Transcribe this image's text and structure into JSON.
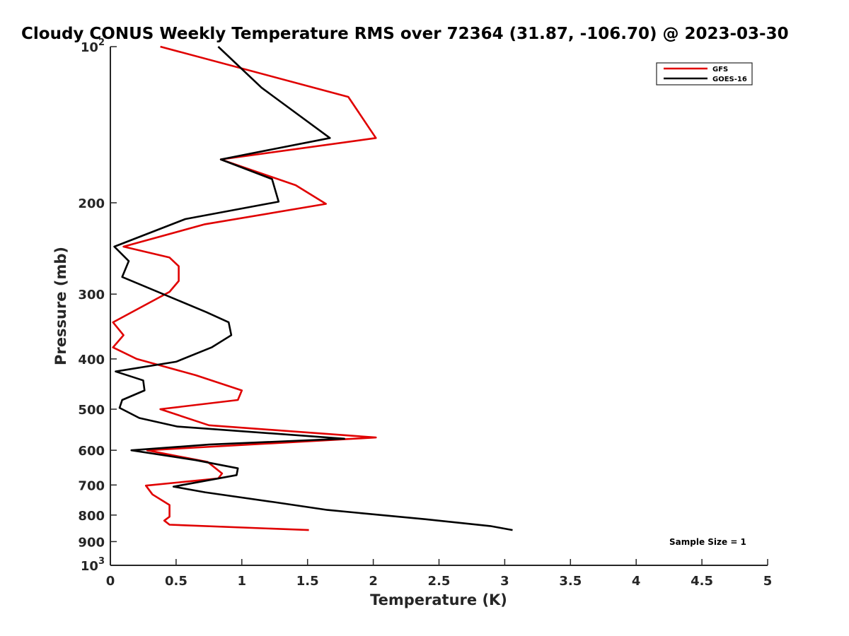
{
  "chart_data": {
    "type": "line",
    "title": "Cloudy CONUS Weekly Temperature RMS over 72364 (31.87, -106.70) @ 2023-03-30",
    "xlabel": "Temperature (K)",
    "ylabel": "Pressure (mb)",
    "xlim": [
      0,
      5
    ],
    "ylim": [
      100,
      1000
    ],
    "y_scale": "log",
    "y_reversed": true,
    "grid": false,
    "legend_position": "top-right",
    "xticks": [
      0,
      0.5,
      1,
      1.5,
      2,
      2.5,
      3,
      3.5,
      4,
      4.5,
      5
    ],
    "xtick_labels": [
      "0",
      "0.5",
      "1",
      "1.5",
      "2",
      "2.5",
      "3",
      "3.5",
      "4",
      "4.5",
      "5"
    ],
    "yticks": [
      100,
      200,
      300,
      400,
      500,
      600,
      700,
      800,
      900,
      1000
    ],
    "ytick_labels": [
      {
        "base": "10",
        "exp": "2"
      },
      {
        "base": "200",
        "exp": ""
      },
      {
        "base": "300",
        "exp": ""
      },
      {
        "base": "400",
        "exp": ""
      },
      {
        "base": "500",
        "exp": ""
      },
      {
        "base": "600",
        "exp": ""
      },
      {
        "base": "700",
        "exp": ""
      },
      {
        "base": "800",
        "exp": ""
      },
      {
        "base": "900",
        "exp": ""
      },
      {
        "base": "10",
        "exp": "3"
      }
    ],
    "series": [
      {
        "name": "GFS",
        "color": "#e00000",
        "x": [
          0.38,
          1.81,
          2.02,
          0.84,
          1.41,
          1.64,
          0.72,
          0.1,
          0.45,
          0.52,
          0.52,
          0.45,
          0.02,
          0.1,
          0.02,
          0.2,
          0.65,
          1.0,
          0.97,
          0.38,
          0.75,
          2.02,
          0.28,
          0.74,
          0.85,
          0.82,
          0.27,
          0.32,
          0.45,
          0.45,
          0.41,
          0.45,
          1.51
        ],
        "y": [
          100,
          125,
          150,
          165,
          185,
          201,
          220,
          243,
          255,
          265,
          283,
          297,
          340,
          360,
          380,
          400,
          430,
          460,
          480,
          500,
          537,
          567,
          600,
          632,
          665,
          680,
          702,
          730,
          765,
          806,
          820,
          835,
          855
        ]
      },
      {
        "name": "GOES-16",
        "color": "#000000",
        "x": [
          0.82,
          1.15,
          1.67,
          0.84,
          1.23,
          1.28,
          0.57,
          0.03,
          0.14,
          0.09,
          0.73,
          0.9,
          0.92,
          0.77,
          0.5,
          0.04,
          0.25,
          0.26,
          0.09,
          0.07,
          0.22,
          0.51,
          1.78,
          0.75,
          0.16,
          0.65,
          0.97,
          0.96,
          0.48,
          0.72,
          1.24,
          1.65,
          2.4,
          2.89,
          3.06
        ],
        "y": [
          100,
          120,
          150,
          165,
          180,
          199,
          215,
          243,
          259,
          278,
          325,
          340,
          360,
          380,
          405,
          423,
          440,
          460,
          480,
          497,
          520,
          540,
          570,
          585,
          600,
          627,
          650,
          670,
          705,
          723,
          755,
          782,
          815,
          840,
          855
        ]
      }
    ],
    "annotations": [
      "Sample Size = 1"
    ]
  }
}
